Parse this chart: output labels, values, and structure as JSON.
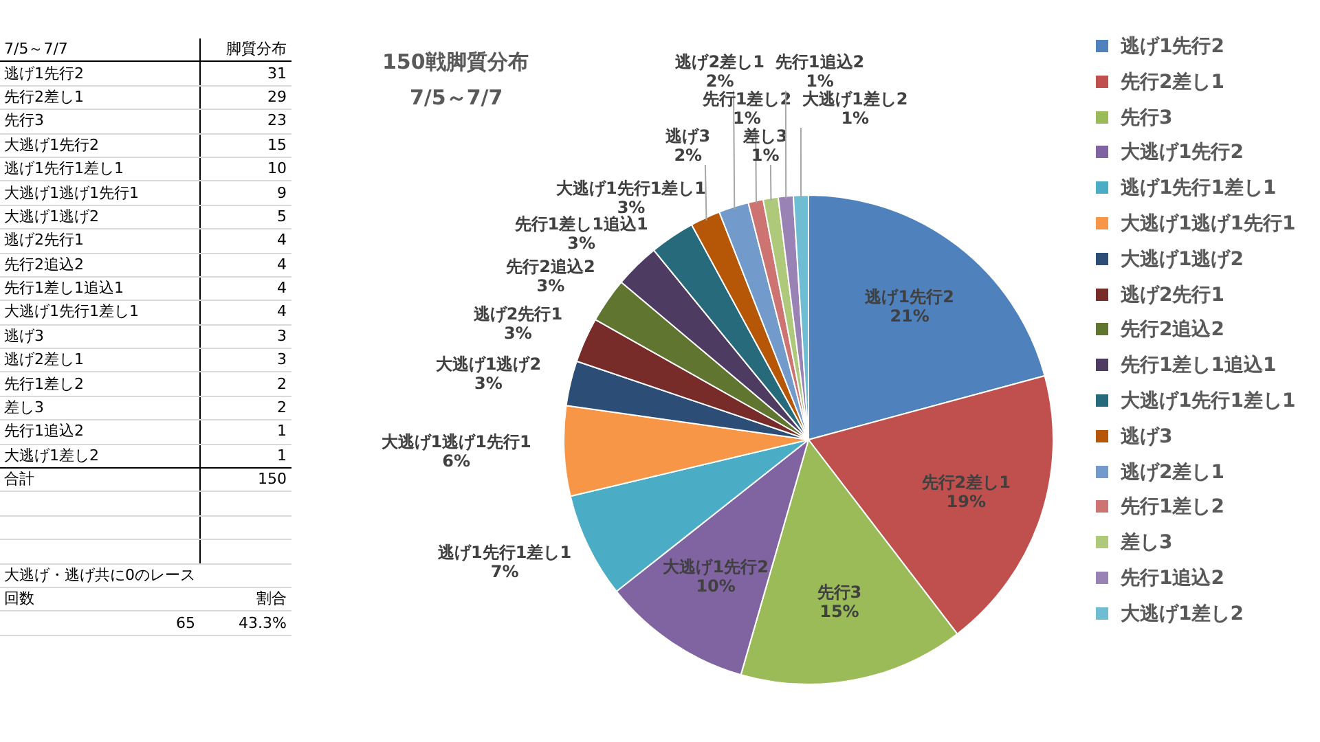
{
  "chart_data": [
    {
      "type": "other",
      "title": "7/5～7/7",
      "categories": [
        "逃げ1先行2",
        "先行2差し1",
        "先行3",
        "大逃げ1先行2",
        "逃げ1先行1差し1",
        "大逃げ1逃げ1先行1",
        "大逃げ1逃げ2",
        "逃げ2先行1",
        "先行2追込2",
        "先行1差し1追込1",
        "大逃げ1先行1差し1",
        "逃げ3",
        "逃げ2差し1",
        "先行1差し2",
        "差し3",
        "先行1追込2",
        "大逃げ1差し2"
      ],
      "values": [
        31,
        29,
        23,
        15,
        10,
        9,
        5,
        4,
        4,
        4,
        4,
        3,
        3,
        2,
        2,
        1,
        1
      ],
      "data_labels": true,
      "annotations": [
        "脚質分布",
        "合計",
        "150",
        "大逃げ・逃げ共に0のレース",
        "回数",
        "割合",
        "65",
        "43.3%"
      ]
    },
    {
      "type": "pie",
      "title": "150戦脚質分布",
      "subtitle": "7/5～7/7",
      "categories": [
        "逃げ1先行2",
        "先行2差し1",
        "先行3",
        "大逃げ1先行2",
        "逃げ1先行1差し1",
        "大逃げ1逃げ1先行1",
        "大逃げ1逃げ2",
        "逃げ2先行1",
        "先行2追込2",
        "先行1差し1追込1",
        "大逃げ1先行1差し1",
        "逃げ3",
        "逃げ2差し1",
        "先行1差し2",
        "差し3",
        "先行1追込2",
        "大逃げ1差し2"
      ],
      "values": [
        21,
        19,
        15,
        10,
        7,
        6,
        3,
        3,
        3,
        3,
        3,
        2,
        2,
        1,
        1,
        1,
        1
      ],
      "value_labels": [
        "21%",
        "19%",
        "15%",
        "10%",
        "7%",
        "6%",
        "3%",
        "3%",
        "3%",
        "3%",
        "3%",
        "2%",
        "2%",
        "1%",
        "1%",
        "1%",
        "1%"
      ],
      "colors": [
        "#4f81bd",
        "#c0504d",
        "#9bbb59",
        "#8064a2",
        "#4bacc6",
        "#f79646",
        "#2c4d75",
        "#772c2a",
        "#5f7530",
        "#4d3b62",
        "#276a7c",
        "#b65708",
        "#729aca",
        "#cd7371",
        "#afc97a",
        "#9983b5",
        "#6fbdd3"
      ],
      "legend": "right"
    }
  ]
}
